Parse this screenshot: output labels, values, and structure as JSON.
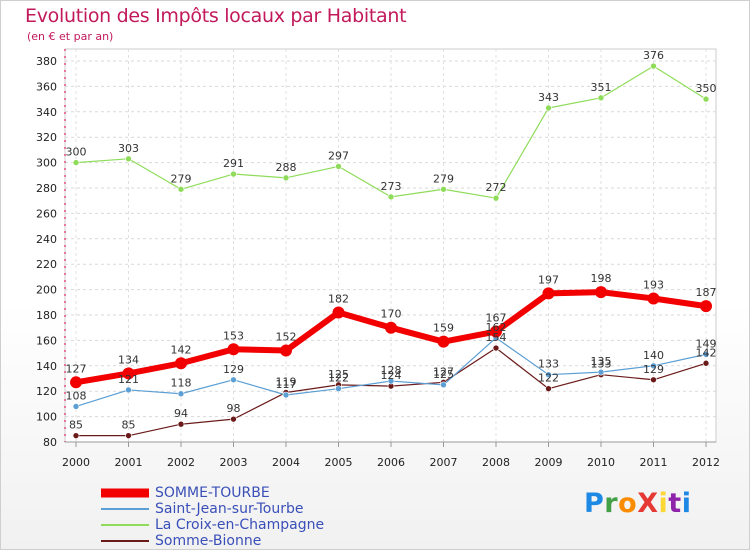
{
  "title": "Evolution des Impôts locaux par Habitant",
  "subtitle": "(en € et par an)",
  "logo": {
    "text": "ProXiti",
    "letters": [
      "P",
      "r",
      "o",
      "X",
      "i",
      "t",
      "i"
    ],
    "colors": [
      "#1e88e5",
      "#43a047",
      "#fb8c00",
      "#e53935",
      "#fdd835",
      "#8e24aa",
      "#1e88e5"
    ]
  },
  "chart_data": {
    "type": "line",
    "title": "Evolution des Impôts locaux par Habitant",
    "subtitle": "(en € et par an)",
    "xlabel": "",
    "ylabel": "",
    "x": [
      "2000",
      "2001",
      "2002",
      "2003",
      "2004",
      "2005",
      "2006",
      "2007",
      "2008",
      "2009",
      "2010",
      "2011",
      "2012"
    ],
    "ylim": [
      80,
      380
    ],
    "yticks": [
      "80",
      "100",
      "120",
      "140",
      "160",
      "180",
      "200",
      "220",
      "240",
      "260",
      "280",
      "300",
      "320",
      "340",
      "360",
      "380"
    ],
    "grid": true,
    "legend_position": "bottom-left",
    "series": [
      {
        "name": "SOMME-TOURBE",
        "color": "#f20000",
        "values": [
          127,
          134,
          142,
          153,
          152,
          182,
          170,
          159,
          167,
          197,
          198,
          193,
          187
        ],
        "labels": [
          "127",
          "134",
          "142",
          "153",
          "152",
          "182",
          "170",
          "159",
          "167",
          "197",
          "198",
          "193",
          "187"
        ]
      },
      {
        "name": "Saint-Jean-sur-Tourbe",
        "color": "#5b9fd4",
        "values": [
          108,
          121,
          118,
          129,
          117,
          122,
          128,
          125,
          162,
          133,
          135,
          140,
          149
        ],
        "labels": [
          "108",
          "121",
          "118",
          "129",
          "117",
          "122",
          "128",
          "125",
          "162",
          "133",
          "135",
          "140",
          "149"
        ]
      },
      {
        "name": "La Croix-en-Champagne",
        "color": "#8fdc5a",
        "values": [
          300,
          303,
          279,
          291,
          288,
          297,
          273,
          279,
          272,
          343,
          351,
          376,
          350
        ],
        "labels": [
          "300",
          "303",
          "279",
          "291",
          "288",
          "297",
          "273",
          "279",
          "272",
          "343",
          "351",
          "376",
          "350"
        ]
      },
      {
        "name": "Somme-Bionne",
        "color": "#6b1a1a",
        "values": [
          85,
          85,
          94,
          98,
          119,
          125,
          124,
          127,
          154,
          122,
          133,
          129,
          142
        ],
        "labels": [
          "85",
          "85",
          "94",
          "98",
          "119",
          "125",
          "124",
          "127",
          "154",
          "122",
          "133",
          "129",
          "142"
        ]
      }
    ]
  }
}
